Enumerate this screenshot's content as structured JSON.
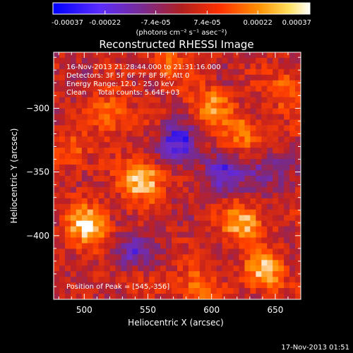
{
  "chart_data": {
    "type": "heatmap",
    "title": "Reconstructed RHESSI Image",
    "xlabel": "Heliocentric X (arcsec)",
    "ylabel": "Heliocentric Y (arcsec)",
    "xlim": [
      476,
      670
    ],
    "ylim": [
      -450,
      -256
    ],
    "x_ticks": [
      500,
      550,
      600,
      650
    ],
    "y_ticks": [
      -300,
      -350,
      -400
    ],
    "colorbar": {
      "ticks": [
        "-0.00037",
        "-0.00022",
        "-7.4e-05",
        "7.4e-05",
        "0.00022",
        "0.00037"
      ],
      "tick_values": [
        -0.00037,
        -0.00022,
        -7.4e-05,
        7.4e-05,
        0.00022,
        0.00037
      ],
      "range": [
        -0.00037,
        0.00037
      ],
      "label": "(photons cm⁻² s⁻¹ asec⁻²)",
      "colors": [
        "#0000ff",
        "#6a2cd0",
        "#7a2a80",
        "#c02020",
        "#ff4000",
        "#ff9000",
        "#ffffff"
      ]
    },
    "annotations": {
      "time": "16-Nov-2013 21:28:44.000 to 21:31:16.000",
      "detectors": "Detectors: 3F 5F 6F 7F 8F 9F, Att 0",
      "energy": "Energy Range: 12.0 - 25.0 keV",
      "clean": "Clean     Total counts: 5.64E+03",
      "peak": "Position of Peak = [545,-356]"
    },
    "sources": [
      {
        "x": 503,
        "y": -393,
        "intensity": 0.00037
      },
      {
        "x": 545,
        "y": -356,
        "intensity": 0.00037
      },
      {
        "x": 624,
        "y": -390,
        "intensity": 0.0003
      },
      {
        "x": 642,
        "y": -428,
        "intensity": 0.00029
      },
      {
        "x": 600,
        "y": -298,
        "intensity": 0.00024
      },
      {
        "x": 625,
        "y": -320,
        "intensity": 0.00022
      },
      {
        "x": 520,
        "y": -305,
        "intensity": 0.0002
      },
      {
        "x": 490,
        "y": -335,
        "intensity": 0.00016
      },
      {
        "x": 588,
        "y": -440,
        "intensity": 0.0002
      },
      {
        "x": 660,
        "y": -285,
        "intensity": 0.00019
      },
      {
        "x": 565,
        "y": -265,
        "intensity": 0.00016
      },
      {
        "x": 540,
        "y": -430,
        "intensity": 0.00012
      }
    ],
    "negative_sources": [
      {
        "x": 573,
        "y": -328,
        "intensity": -0.0003
      },
      {
        "x": 537,
        "y": -416,
        "intensity": -0.00025
      },
      {
        "x": 610,
        "y": -352,
        "intensity": -0.00022
      },
      {
        "x": 640,
        "y": -350,
        "intensity": -0.00018
      }
    ]
  },
  "footer": {
    "timestamp": "17-Nov-2013 01:51"
  }
}
